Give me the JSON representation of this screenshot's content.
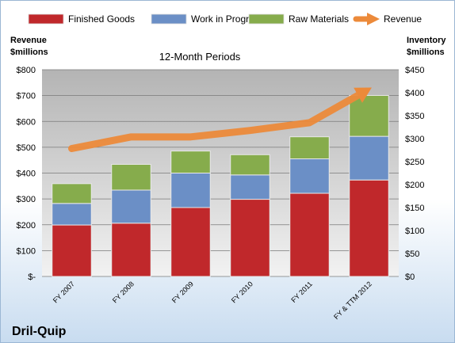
{
  "chart_data": {
    "type": "bar",
    "stacked": true,
    "subtitle": "12-Month Periods",
    "company": "Dril-Quip",
    "ylabel_left": [
      "Revenue",
      "$millions"
    ],
    "ylabel_right": [
      "Inventory",
      "$millions"
    ],
    "categories": [
      "FY 2007",
      "FY 2008",
      "FY 2009",
      "FY 2010",
      "FY 2011",
      "FY & TTM 2012"
    ],
    "series": [
      {
        "name": "Finished Goods",
        "axis": "right",
        "values": [
          112,
          116,
          150,
          168,
          181,
          210
        ],
        "color": "#c0282b"
      },
      {
        "name": "Work in Progress",
        "axis": "right",
        "values": [
          47,
          72,
          75,
          53,
          75,
          95
        ],
        "color": "#6b8fc6"
      },
      {
        "name": "Raw Materials",
        "axis": "right",
        "values": [
          43,
          56,
          48,
          44,
          48,
          89
        ],
        "color": "#86ac4c"
      }
    ],
    "line_series": {
      "name": "Revenue",
      "axis": "left",
      "values": [
        495,
        540,
        540,
        565,
        595,
        725
      ],
      "color": "#ec8a3a"
    },
    "ylim_left": [
      0,
      800
    ],
    "ylim_right": [
      0,
      450
    ],
    "yticks_left": [
      "$-",
      "$100",
      "$200",
      "$300",
      "$400",
      "$500",
      "$600",
      "$700",
      "$800"
    ],
    "yticks_right": [
      "$0",
      "$50",
      "$100",
      "$150",
      "$200",
      "$250",
      "$300",
      "$350",
      "$400",
      "$450"
    ],
    "legend_position": "top",
    "grid": true
  }
}
